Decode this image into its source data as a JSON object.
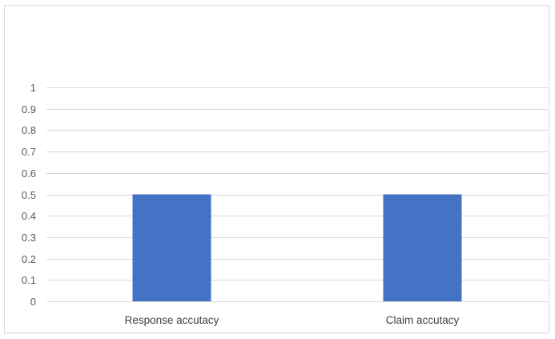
{
  "chart_data": {
    "type": "bar",
    "title": "",
    "xlabel": "",
    "ylabel": "",
    "categories": [
      "Response accutacy",
      "Claim accutacy"
    ],
    "values": [
      0.5,
      0.5
    ],
    "ylim": [
      0,
      1
    ],
    "yticks": [
      "0",
      "0.1",
      "0.2",
      "0.3",
      "0.4",
      "0.5",
      "0.6",
      "0.7",
      "0.8",
      "0.9",
      "1"
    ],
    "grid": true,
    "legend": "none",
    "bar_color": "#4472C4",
    "gridline_color": "#d9d9d9"
  }
}
